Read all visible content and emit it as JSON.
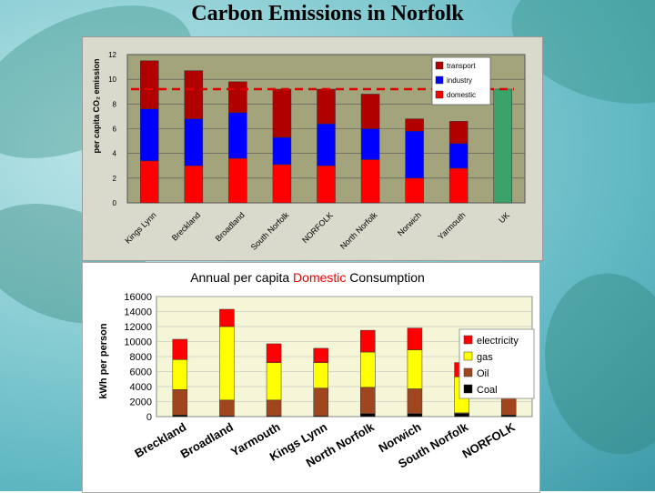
{
  "slide": {
    "title": "Carbon Emissions in Norfolk"
  },
  "chart_data": [
    {
      "type": "bar",
      "stacked": true,
      "title": "",
      "ylabel": "per capita CO₂ emission",
      "ylim": [
        0,
        12
      ],
      "yticks": [
        0,
        2,
        4,
        6,
        8,
        10,
        12
      ],
      "categories": [
        "Kings Lynn",
        "Breckland",
        "Broadland",
        "South Norfolk",
        "NORFOLK",
        "North Norfolk",
        "Norwich",
        "Yarmouth",
        "UK"
      ],
      "series": [
        {
          "name": "domestic",
          "color": "#ff0000",
          "values": [
            3.4,
            3.0,
            3.6,
            3.1,
            3.0,
            3.5,
            2.0,
            2.8,
            null
          ]
        },
        {
          "name": "industry",
          "color": "#0000ff",
          "values": [
            4.2,
            3.8,
            3.7,
            2.2,
            3.4,
            2.5,
            3.8,
            2.0,
            null
          ]
        },
        {
          "name": "transport",
          "color": "#b00000",
          "values": [
            3.9,
            3.9,
            2.5,
            3.9,
            2.8,
            2.8,
            1.0,
            1.8,
            null
          ]
        }
      ],
      "total_bar": {
        "category": "UK",
        "value": 9.2,
        "color": "#3aa36a"
      },
      "reference_line": {
        "value": 9.2,
        "color": "#dd0000",
        "style": "dashed"
      },
      "legend_position": "top-right",
      "grid": true
    },
    {
      "type": "bar",
      "stacked": true,
      "title_parts": [
        "Annual per capita ",
        "Domestic",
        " Consumption"
      ],
      "title_highlight_color": "#ee0000",
      "ylabel": "kWh per person",
      "ylim": [
        0,
        16000
      ],
      "yticks": [
        0,
        2000,
        4000,
        6000,
        8000,
        10000,
        12000,
        14000,
        16000
      ],
      "categories": [
        "Breckland",
        "Broadland",
        "Yarmouth",
        "Kings Lynn",
        "North Norfolk",
        "Norwich",
        "South Norfolk",
        "NORFOLK"
      ],
      "series": [
        {
          "name": "Coal",
          "color": "#000000",
          "values": [
            200,
            100,
            100,
            100,
            400,
            400,
            400,
            200
          ]
        },
        {
          "name": "Oil",
          "color": "#a0461e",
          "values": [
            3400,
            2100,
            2100,
            3700,
            3500,
            3300,
            100,
            3800
          ]
        },
        {
          "name": "gas",
          "color": "#ffff00",
          "values": [
            4000,
            9800,
            5000,
            3400,
            4700,
            5200,
            4800,
            3400
          ]
        },
        {
          "name": "electricity",
          "color": "#ff0000",
          "values": [
            2700,
            2300,
            2500,
            1900,
            2900,
            2900,
            1900,
            2500
          ]
        }
      ],
      "legend_order": [
        "electricity",
        "gas",
        "Oil",
        "Coal"
      ],
      "legend_position": "right",
      "grid": true
    }
  ]
}
